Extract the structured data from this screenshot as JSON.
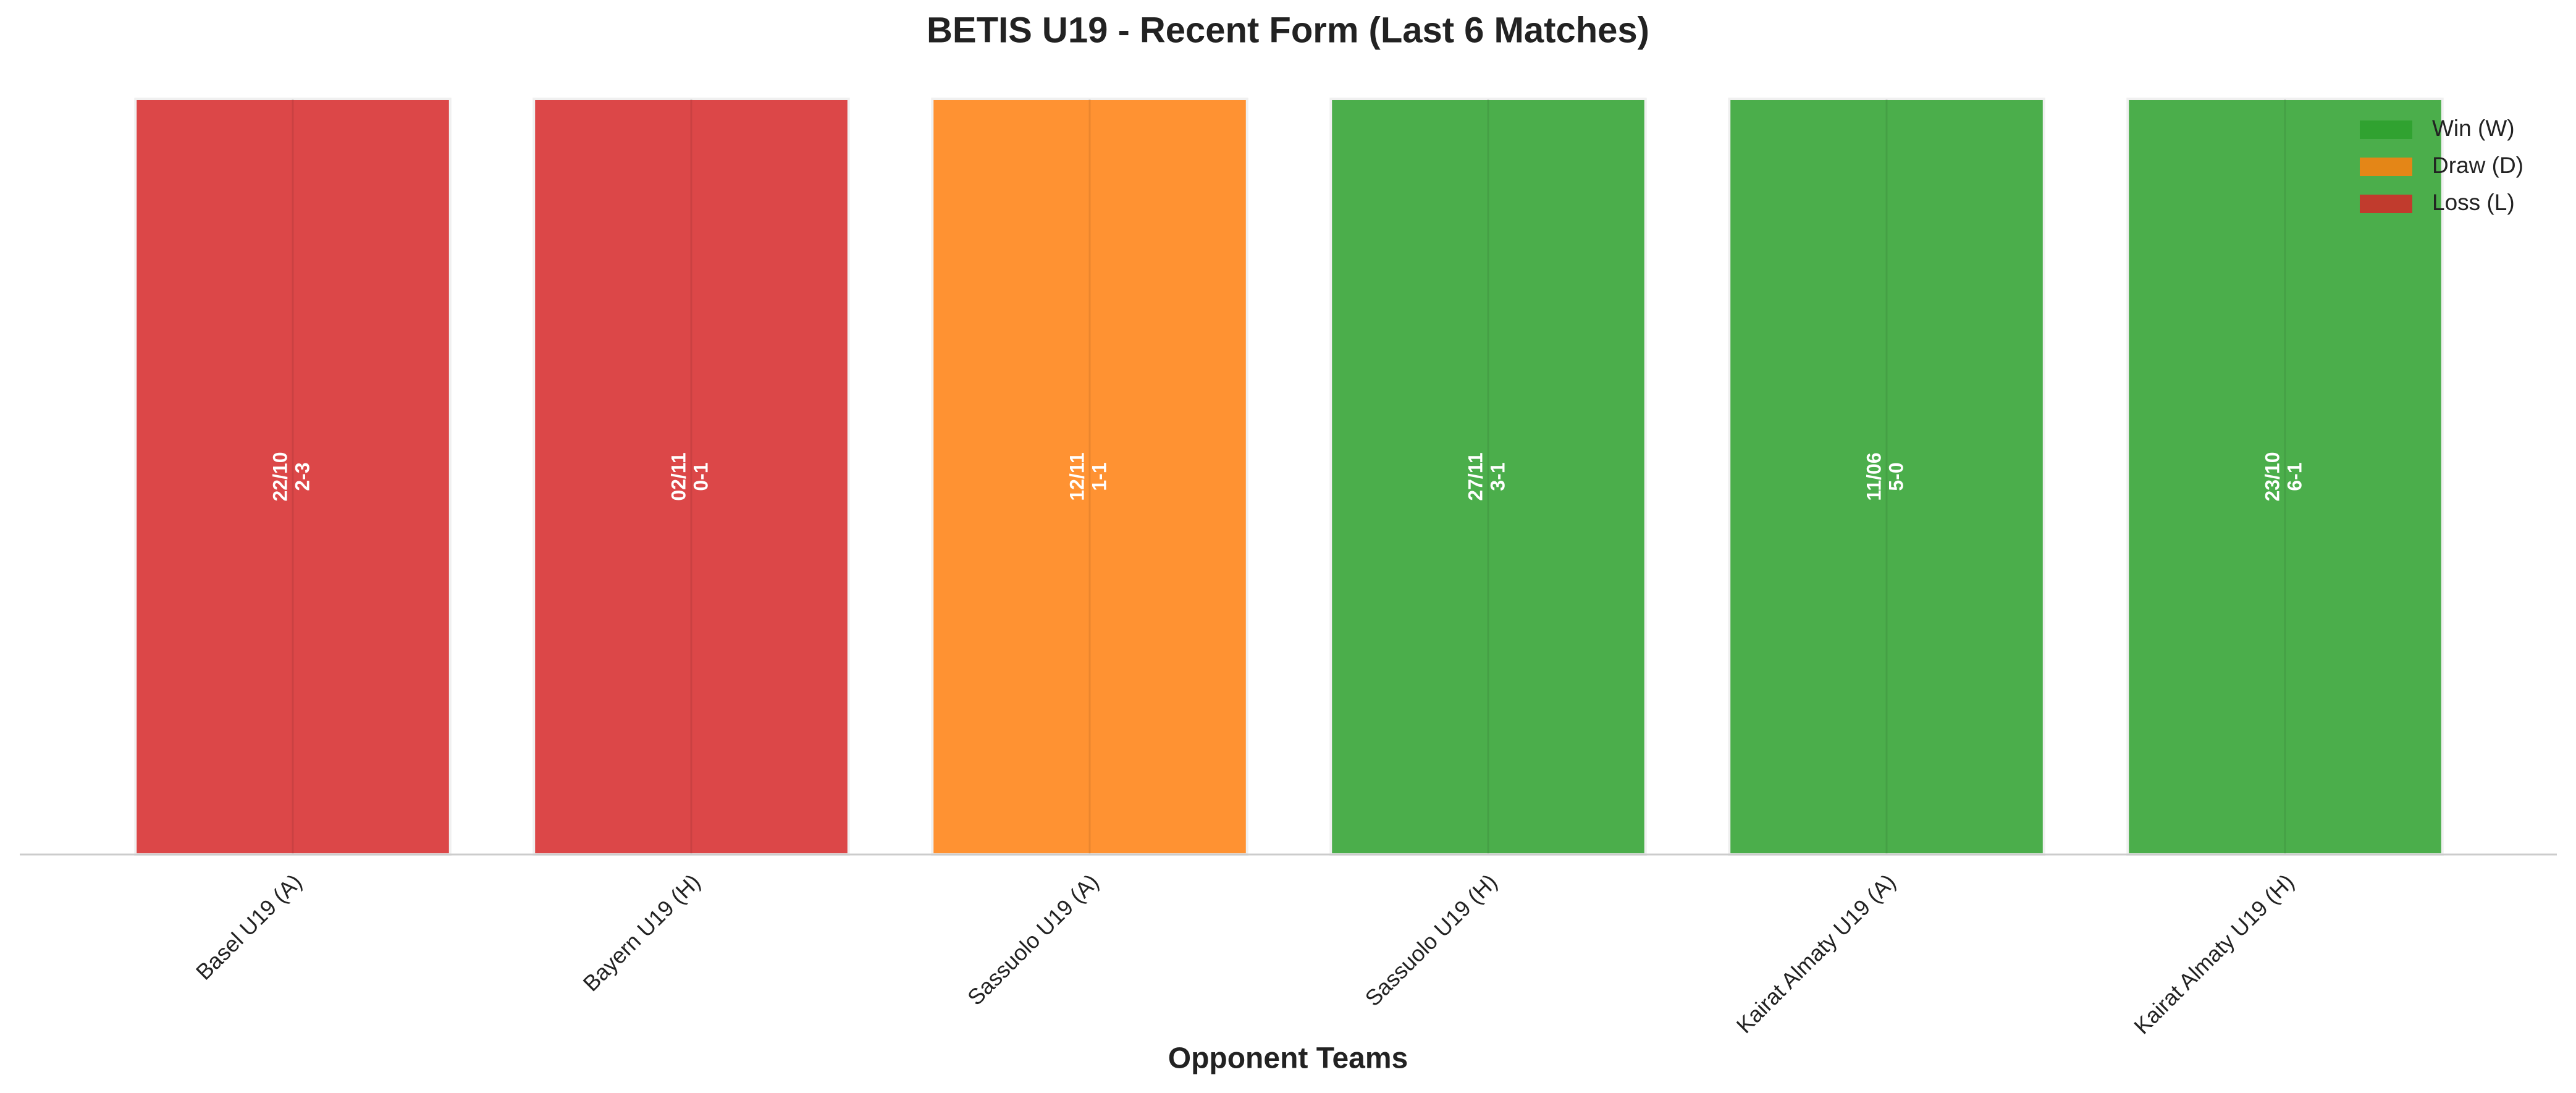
{
  "chart_data": {
    "type": "bar",
    "title": "BETIS U19 - Recent Form (Last 6 Matches)",
    "x_label": "Opponent Teams",
    "categories": [
      "Basel U19 (A)",
      "Bayern U19 (H)",
      "Sassuolo U19 (A)",
      "Sassuolo U19 (H)",
      "Kairat Almaty U19 (A)",
      "Kairat Almaty U19 (H)"
    ],
    "values": [
      1,
      1,
      1,
      1,
      1,
      1
    ],
    "colors": [
      "#d62728",
      "#d62728",
      "#ff7f0e",
      "#2ca02c",
      "#2ca02c",
      "#2ca02c"
    ],
    "dates": [
      "22/10",
      "02/11",
      "12/11",
      "27/11",
      "11/06",
      "23/10"
    ],
    "scores": [
      "2-3",
      "0-1",
      "1-1",
      "3-1",
      "5-0",
      "6-1"
    ],
    "ylim": [
      0,
      1
    ],
    "grid": true,
    "legend_position": "upper right",
    "legend": [
      {
        "name": "Win (W)",
        "color": "#2ca02c"
      },
      {
        "name": "Draw (D)",
        "color": "#ff7f0e"
      },
      {
        "name": "Loss (L)",
        "color": "#d62728"
      }
    ]
  }
}
